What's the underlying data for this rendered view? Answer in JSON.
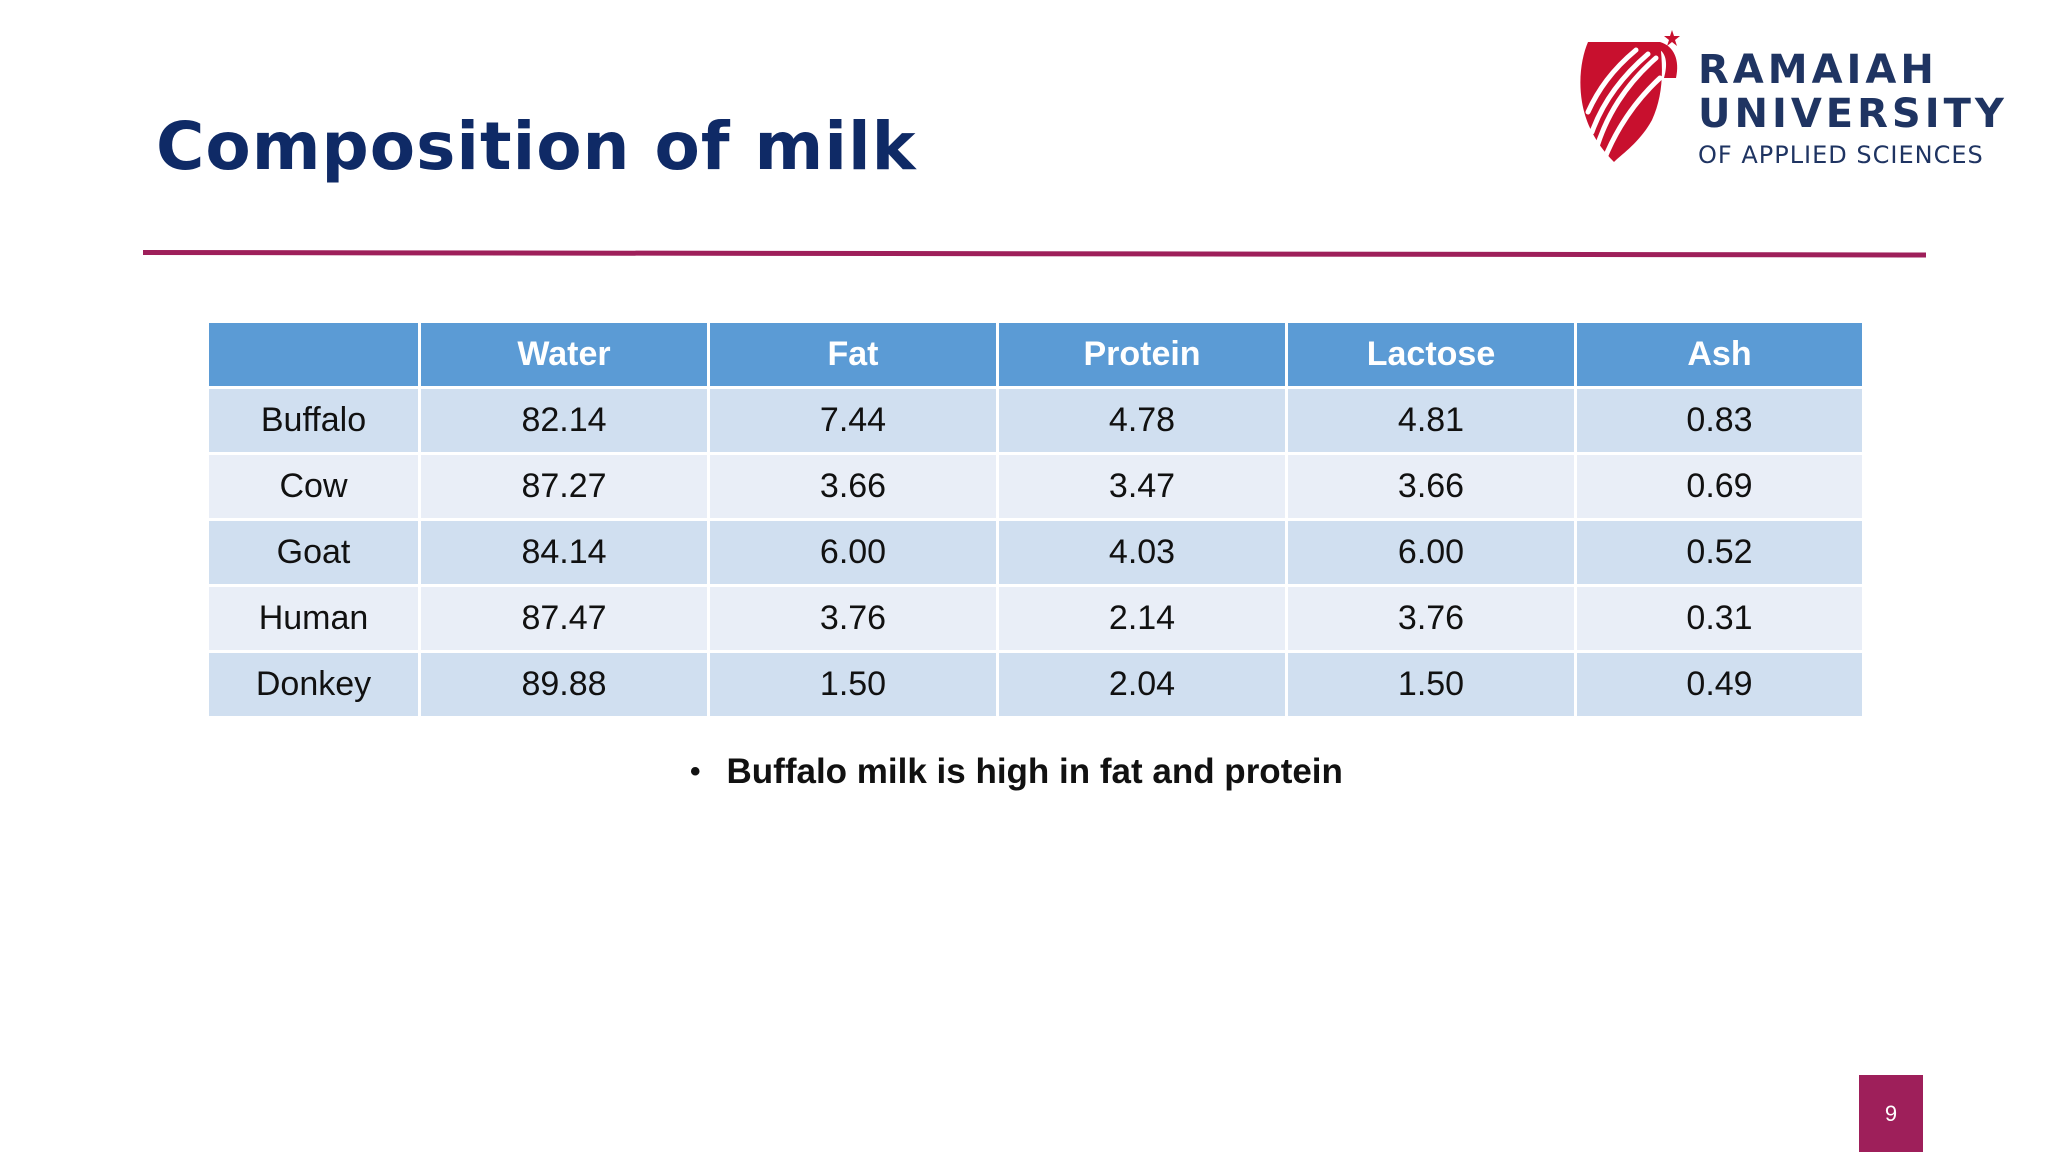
{
  "slide": {
    "title": "Composition of milk",
    "page_number": "9"
  },
  "logo": {
    "line1": "RAMAIAH",
    "line2": "UNIVERSITY",
    "line3": "OF APPLIED SCIENCES",
    "colors": {
      "text": "#1f3462",
      "mark_red": "#c8102e",
      "accent": "#9e1f5a"
    }
  },
  "table": {
    "headers": [
      "",
      "Water",
      "Fat",
      "Protein",
      "Lactose",
      "Ash"
    ],
    "rows": [
      [
        "Buffalo",
        "82.14",
        "7.44",
        "4.78",
        "4.81",
        "0.83"
      ],
      [
        "Cow",
        "87.27",
        "3.66",
        "3.47",
        "3.66",
        "0.69"
      ],
      [
        "Goat",
        "84.14",
        "6.00",
        "4.03",
        "6.00",
        "0.52"
      ],
      [
        "Human",
        "87.47",
        "3.76",
        "2.14",
        "3.76",
        "0.31"
      ],
      [
        "Donkey",
        "89.88",
        "1.50",
        "2.04",
        "1.50",
        "0.49"
      ]
    ]
  },
  "bullets": [
    "Buffalo milk is high in fat and protein"
  ],
  "colors": {
    "title": "#0f2a66",
    "rule": "#9e1f5a",
    "header_bg": "#5b9bd5",
    "row_dark": "#d0dff0",
    "row_light": "#e9eef7"
  }
}
